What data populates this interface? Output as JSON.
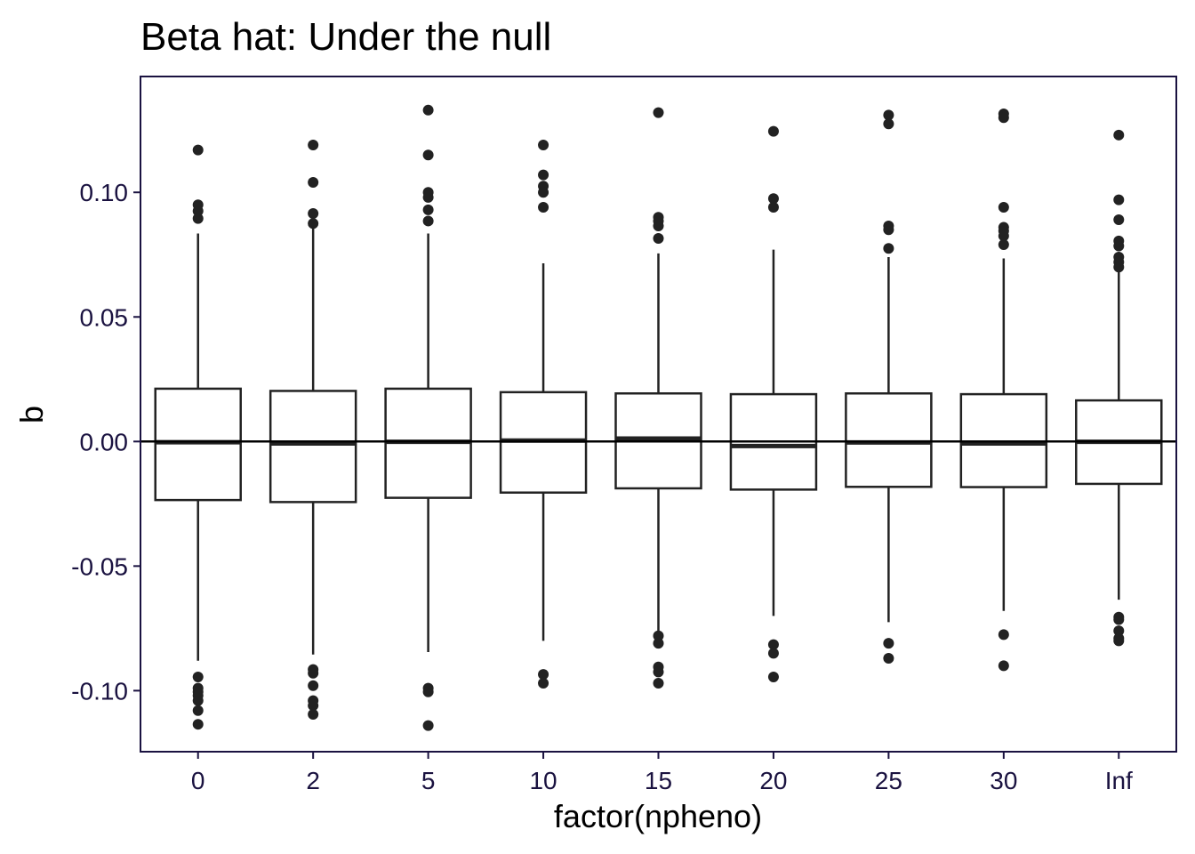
{
  "chart_data": {
    "type": "boxplot",
    "title": "Beta hat: Under the null",
    "xlabel": "factor(npheno)",
    "ylabel": "b",
    "categories": [
      "0",
      "2",
      "5",
      "10",
      "15",
      "20",
      "25",
      "30",
      "Inf"
    ],
    "ylim": [
      -0.1245,
      0.1465
    ],
    "yticks": [
      -0.1,
      -0.05,
      0.0,
      0.05,
      0.1
    ],
    "ytick_labels": [
      "-0.10",
      "-0.05",
      "0.00",
      "0.05",
      "0.10"
    ],
    "reference_line": 0.0,
    "grid": false,
    "colors": {
      "box_stroke": "#222222",
      "outlier": "#222222",
      "panel_border": "#1a1240",
      "tick_text": "#1a1240"
    },
    "boxes": [
      {
        "category": "0",
        "q1": -0.0235,
        "median": -0.0003,
        "q3": 0.0212,
        "whisker_low": -0.088,
        "whisker_high": 0.0835,
        "outliers": [
          0.117,
          0.095,
          0.0925,
          0.0895,
          -0.0945,
          -0.099,
          -0.1005,
          -0.102,
          -0.104,
          -0.108,
          -0.1135
        ]
      },
      {
        "category": "2",
        "q1": -0.0243,
        "median": -0.0008,
        "q3": 0.0203,
        "whisker_low": -0.0855,
        "whisker_high": 0.0855,
        "outliers": [
          0.119,
          0.104,
          0.0915,
          0.0875,
          -0.0915,
          -0.093,
          -0.098,
          -0.104,
          -0.106,
          -0.1095
        ]
      },
      {
        "category": "5",
        "q1": -0.0226,
        "median": -0.0001,
        "q3": 0.0212,
        "whisker_low": -0.0845,
        "whisker_high": 0.0835,
        "outliers": [
          0.133,
          0.115,
          0.1,
          0.098,
          0.093,
          0.0885,
          -0.099,
          -0.1005,
          -0.114
        ]
      },
      {
        "category": "10",
        "q1": -0.0205,
        "median": 0.0004,
        "q3": 0.0198,
        "whisker_low": -0.08,
        "whisker_high": 0.0715,
        "outliers": [
          0.119,
          0.107,
          0.1025,
          0.1,
          0.094,
          -0.0935,
          -0.097
        ]
      },
      {
        "category": "15",
        "q1": -0.0188,
        "median": 0.0012,
        "q3": 0.0193,
        "whisker_low": -0.0765,
        "whisker_high": 0.0755,
        "outliers": [
          0.132,
          0.09,
          0.0885,
          0.0865,
          0.0815,
          -0.078,
          -0.081,
          -0.0905,
          -0.0925,
          -0.097
        ]
      },
      {
        "category": "20",
        "q1": -0.0193,
        "median": -0.0018,
        "q3": 0.019,
        "whisker_low": -0.07,
        "whisker_high": 0.077,
        "outliers": [
          0.1245,
          0.0975,
          0.094,
          -0.0815,
          -0.085,
          -0.0945
        ]
      },
      {
        "category": "25",
        "q1": -0.0182,
        "median": -0.0004,
        "q3": 0.0193,
        "whisker_low": -0.0725,
        "whisker_high": 0.074,
        "outliers": [
          0.131,
          0.1275,
          0.0865,
          0.085,
          0.0775,
          -0.081,
          -0.087
        ]
      },
      {
        "category": "30",
        "q1": -0.0183,
        "median": -0.0008,
        "q3": 0.019,
        "whisker_low": -0.068,
        "whisker_high": 0.0735,
        "outliers": [
          0.1315,
          0.13,
          0.094,
          0.086,
          0.0845,
          0.0825,
          0.079,
          -0.0775,
          -0.09
        ]
      },
      {
        "category": "Inf",
        "q1": -0.017,
        "median": -0.0001,
        "q3": 0.0165,
        "whisker_low": -0.0635,
        "whisker_high": 0.069,
        "outliers": [
          0.123,
          0.097,
          0.089,
          0.0805,
          0.0785,
          0.074,
          0.072,
          0.07,
          -0.0705,
          -0.0715,
          -0.076,
          -0.079,
          -0.08
        ]
      }
    ]
  }
}
